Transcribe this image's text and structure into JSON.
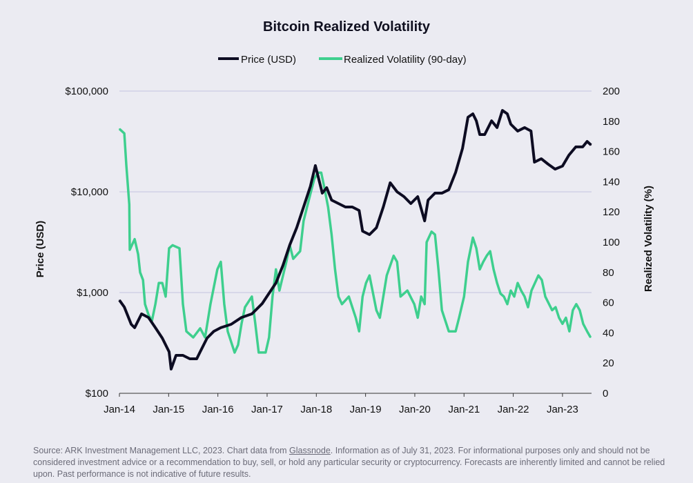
{
  "chart_data": {
    "type": "line",
    "title": "Bitcoin Realized Volatility",
    "legend": {
      "placement": "top-center",
      "entries": [
        "Price (USD)",
        "Realized Volatility (90-day)"
      ]
    },
    "xlabel": "",
    "ylabel_left": "Price (USD)",
    "ylabel_right": "Realized Volatility (%)",
    "xlim": [
      2014.0,
      2023.59
    ],
    "x_ticks": [
      {
        "v": 2014,
        "label": "Jan-14"
      },
      {
        "v": 2015,
        "label": "Jan-15"
      },
      {
        "v": 2016,
        "label": "Jan-16"
      },
      {
        "v": 2017,
        "label": "Jan-17"
      },
      {
        "v": 2018,
        "label": "Jan-18"
      },
      {
        "v": 2019,
        "label": "Jan-19"
      },
      {
        "v": 2020,
        "label": "Jan-20"
      },
      {
        "v": 2021,
        "label": "Jan-21"
      },
      {
        "v": 2022,
        "label": "Jan-22"
      },
      {
        "v": 2023,
        "label": "Jan-23"
      }
    ],
    "y_left": {
      "scale": "log",
      "lim": [
        100,
        100000
      ],
      "ticks": [
        {
          "v": 100,
          "label": "$100"
        },
        {
          "v": 1000,
          "label": "$1,000"
        },
        {
          "v": 10000,
          "label": "$10,000"
        },
        {
          "v": 100000,
          "label": "$100,000"
        }
      ]
    },
    "y_right": {
      "scale": "linear",
      "lim": [
        0,
        200
      ],
      "ticks": [
        0,
        20,
        40,
        60,
        80,
        100,
        120,
        140,
        160,
        180,
        200
      ]
    },
    "grid": true,
    "series": [
      {
        "name": "Price (USD)",
        "axis": "left",
        "color": "#0d0c22",
        "points": [
          [
            2014.0,
            840
          ],
          [
            2014.1,
            718
          ],
          [
            2014.24,
            484
          ],
          [
            2014.31,
            448
          ],
          [
            2014.45,
            614
          ],
          [
            2014.59,
            566
          ],
          [
            2014.73,
            448
          ],
          [
            2014.87,
            353
          ],
          [
            2015.01,
            258
          ],
          [
            2015.05,
            174
          ],
          [
            2015.15,
            238
          ],
          [
            2015.29,
            238
          ],
          [
            2015.43,
            220
          ],
          [
            2015.57,
            220
          ],
          [
            2015.64,
            258
          ],
          [
            2015.78,
            353
          ],
          [
            2015.92,
            413
          ],
          [
            2016.06,
            448
          ],
          [
            2016.27,
            484
          ],
          [
            2016.48,
            566
          ],
          [
            2016.69,
            614
          ],
          [
            2016.9,
            776
          ],
          [
            2017.04,
            985
          ],
          [
            2017.18,
            1247
          ],
          [
            2017.32,
            1850
          ],
          [
            2017.46,
            2970
          ],
          [
            2017.6,
            4400
          ],
          [
            2017.74,
            7070
          ],
          [
            2017.88,
            11350
          ],
          [
            2017.98,
            18200
          ],
          [
            2018.05,
            13300
          ],
          [
            2018.12,
            9700
          ],
          [
            2018.21,
            11000
          ],
          [
            2018.31,
            8280
          ],
          [
            2018.45,
            7650
          ],
          [
            2018.59,
            7070
          ],
          [
            2018.73,
            7070
          ],
          [
            2018.87,
            6530
          ],
          [
            2018.94,
            4070
          ],
          [
            2019.08,
            3760
          ],
          [
            2019.22,
            4400
          ],
          [
            2019.36,
            7070
          ],
          [
            2019.5,
            12300
          ],
          [
            2019.64,
            10000
          ],
          [
            2019.78,
            8950
          ],
          [
            2019.92,
            7650
          ],
          [
            2020.06,
            8950
          ],
          [
            2020.2,
            5150
          ],
          [
            2020.27,
            8280
          ],
          [
            2020.41,
            9700
          ],
          [
            2020.55,
            9700
          ],
          [
            2020.69,
            10500
          ],
          [
            2020.83,
            15600
          ],
          [
            2020.97,
            27000
          ],
          [
            2021.08,
            55000
          ],
          [
            2021.18,
            59400
          ],
          [
            2021.25,
            50700
          ],
          [
            2021.32,
            37000
          ],
          [
            2021.42,
            37000
          ],
          [
            2021.56,
            50700
          ],
          [
            2021.67,
            43400
          ],
          [
            2021.78,
            64300
          ],
          [
            2021.88,
            59400
          ],
          [
            2021.95,
            46900
          ],
          [
            2022.09,
            40100
          ],
          [
            2022.23,
            43400
          ],
          [
            2022.36,
            40100
          ],
          [
            2022.43,
            19700
          ],
          [
            2022.57,
            21300
          ],
          [
            2022.71,
            18800
          ],
          [
            2022.85,
            16800
          ],
          [
            2023.0,
            18000
          ],
          [
            2023.13,
            23100
          ],
          [
            2023.27,
            27900
          ],
          [
            2023.41,
            27900
          ],
          [
            2023.5,
            31600
          ],
          [
            2023.58,
            29200
          ]
        ]
      },
      {
        "name": "Realized Volatility (90-day)",
        "axis": "right",
        "color": "#3ecf8e",
        "points": [
          [
            2014.0,
            175
          ],
          [
            2014.1,
            172
          ],
          [
            2014.14,
            151
          ],
          [
            2014.2,
            125
          ],
          [
            2014.21,
            95
          ],
          [
            2014.31,
            102
          ],
          [
            2014.38,
            92
          ],
          [
            2014.42,
            80
          ],
          [
            2014.48,
            75
          ],
          [
            2014.52,
            59
          ],
          [
            2014.59,
            52
          ],
          [
            2014.66,
            48
          ],
          [
            2014.73,
            59
          ],
          [
            2014.8,
            73
          ],
          [
            2014.87,
            73
          ],
          [
            2014.94,
            64
          ],
          [
            2015.01,
            96
          ],
          [
            2015.08,
            98
          ],
          [
            2015.22,
            96
          ],
          [
            2015.29,
            59
          ],
          [
            2015.36,
            41
          ],
          [
            2015.5,
            37
          ],
          [
            2015.64,
            43
          ],
          [
            2015.74,
            37
          ],
          [
            2015.85,
            59
          ],
          [
            2015.99,
            82
          ],
          [
            2016.06,
            87
          ],
          [
            2016.13,
            59
          ],
          [
            2016.2,
            41
          ],
          [
            2016.34,
            27
          ],
          [
            2016.41,
            32
          ],
          [
            2016.48,
            46
          ],
          [
            2016.55,
            57
          ],
          [
            2016.69,
            64
          ],
          [
            2016.76,
            46
          ],
          [
            2016.83,
            27
          ],
          [
            2016.97,
            27
          ],
          [
            2017.04,
            37
          ],
          [
            2017.11,
            64
          ],
          [
            2017.18,
            82
          ],
          [
            2017.25,
            68
          ],
          [
            2017.39,
            87
          ],
          [
            2017.46,
            98
          ],
          [
            2017.53,
            89
          ],
          [
            2017.67,
            94
          ],
          [
            2017.74,
            114
          ],
          [
            2017.81,
            123
          ],
          [
            2017.88,
            132
          ],
          [
            2017.96,
            142
          ],
          [
            2018.03,
            146
          ],
          [
            2018.1,
            146
          ],
          [
            2018.17,
            135
          ],
          [
            2018.24,
            123
          ],
          [
            2018.31,
            105
          ],
          [
            2018.38,
            82
          ],
          [
            2018.45,
            64
          ],
          [
            2018.52,
            59
          ],
          [
            2018.66,
            64
          ],
          [
            2018.73,
            57
          ],
          [
            2018.8,
            50
          ],
          [
            2018.87,
            41
          ],
          [
            2018.94,
            64
          ],
          [
            2019.01,
            73
          ],
          [
            2019.08,
            78
          ],
          [
            2019.22,
            55
          ],
          [
            2019.29,
            50
          ],
          [
            2019.43,
            78
          ],
          [
            2019.57,
            91
          ],
          [
            2019.64,
            87
          ],
          [
            2019.71,
            64
          ],
          [
            2019.85,
            68
          ],
          [
            2019.99,
            59
          ],
          [
            2020.06,
            50
          ],
          [
            2020.13,
            64
          ],
          [
            2020.2,
            59
          ],
          [
            2020.24,
            100
          ],
          [
            2020.34,
            107
          ],
          [
            2020.41,
            105
          ],
          [
            2020.48,
            82
          ],
          [
            2020.55,
            55
          ],
          [
            2020.69,
            41
          ],
          [
            2020.83,
            41
          ],
          [
            2020.9,
            50
          ],
          [
            2021.0,
            64
          ],
          [
            2021.08,
            87
          ],
          [
            2021.18,
            103
          ],
          [
            2021.25,
            96
          ],
          [
            2021.32,
            82
          ],
          [
            2021.39,
            87
          ],
          [
            2021.46,
            91
          ],
          [
            2021.53,
            94
          ],
          [
            2021.6,
            82
          ],
          [
            2021.67,
            73
          ],
          [
            2021.74,
            66
          ],
          [
            2021.81,
            64
          ],
          [
            2021.88,
            59
          ],
          [
            2021.95,
            68
          ],
          [
            2022.02,
            64
          ],
          [
            2022.09,
            73
          ],
          [
            2022.16,
            68
          ],
          [
            2022.23,
            64
          ],
          [
            2022.3,
            57
          ],
          [
            2022.37,
            68
          ],
          [
            2022.51,
            78
          ],
          [
            2022.58,
            75
          ],
          [
            2022.65,
            64
          ],
          [
            2022.79,
            55
          ],
          [
            2022.86,
            57
          ],
          [
            2022.93,
            50
          ],
          [
            2023.0,
            46
          ],
          [
            2023.07,
            50
          ],
          [
            2023.14,
            41
          ],
          [
            2023.21,
            55
          ],
          [
            2023.28,
            59
          ],
          [
            2023.35,
            55
          ],
          [
            2023.42,
            46
          ],
          [
            2023.5,
            41
          ],
          [
            2023.57,
            37
          ]
        ]
      }
    ]
  },
  "footer": {
    "prefix": "Source: ARK Investment Management LLC, 2023. Chart data from ",
    "link": "Glassnode",
    "suffix": ". Information as of July 31, 2023. For informational purposes only and should not be considered investment advice or a recommendation to buy, sell, or hold any particular security or cryptocurrency. Forecasts are inherently limited and cannot be relied upon. Past performance is not indicative of future results."
  }
}
